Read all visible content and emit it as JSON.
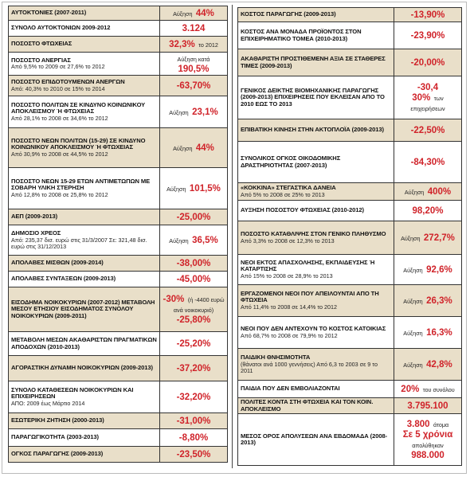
{
  "left": {
    "rows": [
      {
        "label": "ΑΥΤΟΚΤΟΝΙΕΣ (2007-2011)",
        "value": [
          [
            {
              "text": "Αύξηση",
              "kind": "txt"
            },
            {
              "text": "44%",
              "kind": "num"
            }
          ]
        ]
      },
      {
        "label": "ΣΥΝΟΛΟ ΑΥΤΟΚΤΟΝΙΩΝ 2009-2012",
        "value": [
          [
            {
              "text": "3.124",
              "kind": "num"
            }
          ]
        ]
      },
      {
        "label": "ΠΟΣΟΣΤΟ ΦΤΩΧΕΙΑΣ",
        "value": [
          [
            {
              "text": "32,3%",
              "kind": "num"
            },
            {
              "text": "το 2012",
              "kind": "txt"
            }
          ]
        ]
      },
      {
        "label": "ΠΟΣΟΣΤΟ ΑΝΕΡΓΙΑΣ",
        "note": "Από 9,5% το 2009 σε 27,6% το 2012",
        "value": [
          [
            {
              "text": "Αύξηση κατά",
              "kind": "txt"
            },
            {
              "text": "190,5%",
              "kind": "num"
            }
          ]
        ]
      },
      {
        "label": "ΠΟΣΟΣΤΟ ΕΠΙΔΟΤΟΥΜΕΝΩΝ ΑΝΕΡΓΩΝ",
        "note": "Από: 40,3% το 2010 σε 15% το 2014",
        "value": [
          [
            {
              "text": "-63,70%",
              "kind": "num"
            }
          ]
        ]
      },
      {
        "label": "ΠΟΣΟΣΤΟ ΠΟΛΙΤΩΝ ΣΕ ΚΙΝΔΥΝΟ ΚΟΙΝΩΝΙΚΟΥ ΑΠΟΚΛΕΙΣΜΟΥ Ή ΦΤΩΧΕΙΑΣ",
        "note": "Από 28,1% το 2008 σε 34,6% το 2012",
        "value": [
          [
            {
              "text": "Αύξηση",
              "kind": "txt"
            },
            {
              "text": "23,1%",
              "kind": "num"
            }
          ]
        ]
      },
      {
        "label": "ΠΟΣΟΣΤΟ ΝΕΩΝ ΠΟΛΙΤΩΝ (15-29) ΣΕ ΚΙΝΔΥΝΟ ΚΟΙΝΩΝΙΚΟΥ ΑΠΟΚΛΕΙΣΜΟΥ Ή ΦΤΩΧΕΙΑΣ",
        "note": "Από 30,9% το 2008 σε 44,5% το 2012",
        "value": [
          [
            {
              "text": "Αύξηση",
              "kind": "txt"
            },
            {
              "text": "44%",
              "kind": "num"
            }
          ]
        ]
      },
      {
        "label": "ΠΟΣΟΣΤΟ ΝΕΩΝ 15-29 ΕΤΩΝ ΑΝΤΙΜΕΤΩΠΩΝ ΜΕ ΣΟΒΑΡΗ ΥΛΙΚΗ ΣΤΕΡΗΣΗ",
        "note": "Από 12,8% το 2008 σε 25,8% το 2012",
        "value": [
          [
            {
              "text": "Αύξηση",
              "kind": "txt"
            },
            {
              "text": "101,5%",
              "kind": "num"
            }
          ]
        ]
      },
      {
        "label": "ΑΕΠ (2009-2013)",
        "value": [
          [
            {
              "text": "-25,00%",
              "kind": "num"
            }
          ]
        ]
      },
      {
        "label": "ΔΗΜΟΣΙΟ ΧΡΕΟΣ",
        "note": "Από: 235,37 δισ. ευρώ στις 31/3/2007 Σε: 321,48 δισ. ευρώ στις 31/12/2013",
        "value": [
          [
            {
              "text": "Αύξηση",
              "kind": "txt"
            },
            {
              "text": "36,5%",
              "kind": "num"
            }
          ]
        ]
      },
      {
        "label": "ΑΠΟΛΑΒΕΣ ΜΙΣΘΩΝ (2009-2014)",
        "value": [
          [
            {
              "text": "-38,00%",
              "kind": "num"
            }
          ]
        ]
      },
      {
        "label": "ΑΠΟΛΑΒΕΣ ΣΥΝΤΑΞΕΩΝ (2009-2013)",
        "value": [
          [
            {
              "text": "-45,00%",
              "kind": "num"
            }
          ]
        ]
      },
      {
        "label": "ΕΙΣΟΔΗΜΑ ΝΟΙΚΟΚΥΡΙΩΝ (2007-2012) ΜΕΤΑΒΟΛΗ ΜΕΣΟΥ ΕΤΗΣΙΟΥ ΕΙΣΟΔΗΜΑΤΟΣ ΣΥΝΟΛΟΥ ΝΟΙΚΟΚΥΡΙΩΝ (2009-2011)",
        "value": [
          [
            {
              "text": "-30%",
              "kind": "num"
            },
            {
              "text": "(ή -4400 ευρώ ανά νοικοκυριό)",
              "kind": "txt"
            }
          ],
          [
            {
              "text": "-25,80%",
              "kind": "num"
            }
          ]
        ]
      },
      {
        "label": "ΜΕΤΑΒΟΛΗ ΜΕΣΩΝ ΑΚΑΘΑΡΙΣΤΩΝ ΠΡΑΓΜΑΤΙΚΩΝ ΑΠΟΔΟΧΩΝ (2010-2013)",
        "value": [
          [
            {
              "text": "-25,20%",
              "kind": "num"
            }
          ]
        ]
      },
      {
        "label": "ΑΓΟΡΑΣΤΙΚΗ ΔΥΝΑΜΗ ΝΟΙΚΟΚΥΡΙΩΝ (2009-2013)",
        "value": [
          [
            {
              "text": "-37,20%",
              "kind": "num"
            }
          ]
        ]
      },
      {
        "label": "ΣΥΝΟΛΟ ΚΑΤΑΘΕΣΕΩΝ ΝΟΙΚΟΚΥΡΙΩΝ ΚΑΙ ΕΠΙΧΕΙΡΗΣΕΩΝ",
        "note": "ΑΠΟ: 2009 έως Μάρτιο 2014",
        "value": [
          [
            {
              "text": "-32,20%",
              "kind": "num"
            }
          ]
        ]
      },
      {
        "label": "ΕΣΩΤΕΡΙΚΗ ΖΗΤΗΣΗ (2000-2013)",
        "value": [
          [
            {
              "text": "-31,00%",
              "kind": "num"
            }
          ]
        ]
      },
      {
        "label": "ΠΑΡΑΓΩΓΙΚΟΤΗΤΑ (2003-2013)",
        "value": [
          [
            {
              "text": "-8,80%",
              "kind": "num"
            }
          ]
        ]
      },
      {
        "label": "ΟΓΚΟΣ ΠΑΡΑΓΩΓΗΣ (2009-2013)",
        "value": [
          [
            {
              "text": "-23,50%",
              "kind": "num"
            }
          ]
        ]
      }
    ]
  },
  "right": {
    "rows": [
      {
        "label": "ΚΟΣΤΟΣ ΠΑΡΑΓΩΓΗΣ (2009-2013)",
        "value": [
          [
            {
              "text": "-13,90%",
              "kind": "num"
            }
          ]
        ]
      },
      {
        "label": "ΚΟΣΤΟΣ ΑΝΑ ΜΟΝΑΔΑ ΠΡΟΪΟΝΤΟΣ ΣΤΟΝ ΕΠΙΧΕΙΡΗΜΑΤΙΚΟ ΤΟΜΕΑ (2010-2013)",
        "value": [
          [
            {
              "text": "-23,90%",
              "kind": "num"
            }
          ]
        ]
      },
      {
        "label": "ΑΚΑΘΑΡΙΣΤΗ ΠΡΟΣΤΙΘΕΜΕΝΗ ΑΞΙΑ ΣΕ ΣΤΑΘΕΡΕΣ ΤΙΜΕΣ (2009-2013)",
        "value": [
          [
            {
              "text": "-20,00%",
              "kind": "num"
            }
          ]
        ]
      },
      {
        "label": "ΓΕΝΙΚΟΣ ΔΕΙΚΤΗΣ ΒΙΟΜΗΧΑΝΙΚΗΣ ΠΑΡΑΓΩΓΗΣ (2009-2013) ΕΠΙΧΕΙΡΗΣΕΙΣ ΠΟΥ ΕΚΛΕΙΣΑΝ ΑΠΟ ΤΟ 2010 ΕΩΣ ΤΟ 2013",
        "value": [
          [
            {
              "text": "-30,4",
              "kind": "num"
            }
          ],
          [
            {
              "text": "30%",
              "kind": "num"
            },
            {
              "text": "των επιχειρήσεων",
              "kind": "txt"
            }
          ]
        ]
      },
      {
        "label": "ΕΠΙΒΑΤΙΚΗ ΚΙΝΗΣΗ ΣΤΗΝ ΑΚΤΟΠΛΟΪΑ (2009-2013)",
        "value": [
          [
            {
              "text": "-22,50%",
              "kind": "num"
            }
          ]
        ]
      },
      {
        "label": "ΣΥΝΟΛΙΚΟΣ ΟΓΚΟΣ ΟΙΚΟΔΟΜΙΚΗΣ ΔΡΑΣΤΗΡΙΟΤΗΤΑΣ (2007-2013)",
        "value": [
          [
            {
              "text": "-84,30%",
              "kind": "num"
            }
          ]
        ]
      },
      {
        "label": "«ΚΟΚΚΙΝΑ» ΣΤΕΓΑΣΤΙΚΑ ΔΑΝΕΙΑ",
        "note": "Από 5% το 2008 σε 25% το 2013",
        "value": [
          [
            {
              "text": "Αύξηση",
              "kind": "txt"
            },
            {
              "text": "400%",
              "kind": "num"
            }
          ]
        ]
      },
      {
        "label": "ΑΥΞΗΣΗ ΠΟΣΟΣΤΟΥ ΦΤΩΧΕΙΑΣ (2010-2012)",
        "value": [
          [
            {
              "text": "98,20%",
              "kind": "num"
            }
          ]
        ]
      },
      {
        "label": "ΠΟΣΟΣΤΟ ΚΑΤΑΘΛΙΨΗΣ ΣΤΟΝ ΓΕΝΙΚΟ ΠΛΗΘΥΣΜΟ",
        "note": "Από 3,3% το 2008 σε 12,3% το 2013",
        "value": [
          [
            {
              "text": "Αύξηση",
              "kind": "txt"
            },
            {
              "text": "272,7%",
              "kind": "num"
            }
          ]
        ]
      },
      {
        "label": "ΝΕΟΙ ΕΚΤΟΣ ΑΠΑΣΧΟΛΗΣΗΣ, ΕΚΠΑΙΔΕΥΣΗΣ Ή ΚΑΤΑΡΤΙΣΗΣ",
        "note": "Από 15% το 2008 σε 28,9% το 2013",
        "value": [
          [
            {
              "text": "Αύξηση",
              "kind": "txt"
            },
            {
              "text": "92,6%",
              "kind": "num"
            }
          ]
        ]
      },
      {
        "label": "ΕΡΓΑΖΟΜΕΝΟΙ ΝΕΟΙ ΠΟΥ ΑΠΕΙΛΟΥΝΤΑΙ ΑΠΟ ΤΗ ΦΤΩΧΕΙΑ",
        "note": "Από 11,4% το 2008 σε 14,4% το 2012",
        "value": [
          [
            {
              "text": "Αύξηση",
              "kind": "txt"
            },
            {
              "text": "26,3%",
              "kind": "num"
            }
          ]
        ]
      },
      {
        "label": "ΝΕΟΙ ΠΟΥ ΔΕΝ ΑΝΤΕΧΟΥΝ ΤΟ ΚΟΣΤΟΣ ΚΑΤΟΙΚΙΑΣ",
        "note": "Από 68,7% το 2008 σε 79,9% το 2012",
        "value": [
          [
            {
              "text": "Αύξηση",
              "kind": "txt"
            },
            {
              "text": "16,3%",
              "kind": "num"
            }
          ]
        ]
      },
      {
        "label": "ΠΑΙΔΙΚΗ ΘΝΗΣΙΜΟΤΗΤΑ",
        "note": "(θάνατοι ανά 1000 γεννήσεις) Από 6,3 το 2003 σε 9 το 2011",
        "value": [
          [
            {
              "text": "Αύξηση",
              "kind": "txt"
            },
            {
              "text": "42,8%",
              "kind": "num"
            }
          ]
        ]
      },
      {
        "label": "ΠΑΙΔΙΑ ΠΟΥ ΔΕΝ ΕΜΒΟΛΙΑΖΟΝΤΑΙ",
        "value": [
          [
            {
              "text": "20%",
              "kind": "num"
            },
            {
              "text": "του συνόλου",
              "kind": "txt"
            }
          ]
        ]
      },
      {
        "label": "ΠΟΛΙΤΕΣ ΚΟΝΤΑ ΣΤΗ ΦΤΩΧΕΙΑ ΚΑΙ ΤΟΝ ΚΟΙΝ. ΑΠΟΚΛΕΙΣΜΟ",
        "value": [
          [
            {
              "text": "3.795.100",
              "kind": "num"
            }
          ]
        ]
      },
      {
        "label": "ΜΕΣΟΣ ΟΡΟΣ ΑΠΟΛΥΣΕΩΝ ΑΝΑ ΕΒΔΟΜΑΔΑ (2008-2013)",
        "value": [
          [
            {
              "text": "3.800",
              "kind": "num"
            },
            {
              "text": "άτομα",
              "kind": "txt"
            }
          ],
          [
            {
              "text": "Σε 5 χρόνια",
              "kind": "num"
            },
            {
              "text": "απολύθηκαν",
              "kind": "txt"
            }
          ],
          [
            {
              "text": "988.000",
              "kind": "num"
            }
          ]
        ]
      }
    ]
  }
}
